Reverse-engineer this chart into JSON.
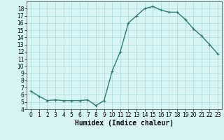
{
  "x": [
    0,
    1,
    2,
    3,
    4,
    5,
    6,
    7,
    8,
    9,
    10,
    11,
    12,
    13,
    14,
    15,
    16,
    17,
    18,
    19,
    20,
    21,
    22,
    23
  ],
  "y": [
    6.5,
    5.8,
    5.2,
    5.3,
    5.2,
    5.2,
    5.2,
    5.3,
    4.5,
    5.2,
    9.3,
    12.0,
    16.0,
    17.0,
    18.0,
    18.3,
    17.8,
    17.5,
    17.5,
    16.5,
    15.2,
    14.2,
    13.0,
    11.7
  ],
  "line_color": "#2e7d70",
  "marker": "+",
  "marker_size": 3,
  "xlabel": "Humidex (Indice chaleur)",
  "xlabel_fontsize": 7,
  "bg_color": "#d8f5f5",
  "grid_color": "#b0dede",
  "xlim": [
    -0.5,
    23.5
  ],
  "ylim": [
    4,
    19
  ],
  "yticks": [
    4,
    5,
    6,
    7,
    8,
    9,
    10,
    11,
    12,
    13,
    14,
    15,
    16,
    17,
    18
  ],
  "xticks": [
    0,
    1,
    2,
    3,
    4,
    5,
    6,
    7,
    8,
    9,
    10,
    11,
    12,
    13,
    14,
    15,
    16,
    17,
    18,
    19,
    20,
    21,
    22,
    23
  ],
  "tick_fontsize": 5.5,
  "line_width": 1.0,
  "marker_edge_width": 0.8
}
